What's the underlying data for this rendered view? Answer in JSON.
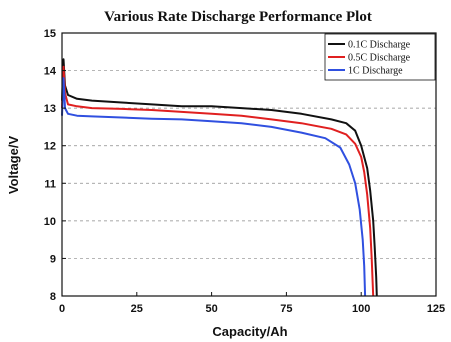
{
  "chart_data": {
    "type": "line",
    "title": "Various Rate Discharge Performance Plot",
    "xlabel": "Capacity/Ah",
    "ylabel": "Voltage/V",
    "xlim": [
      0,
      125
    ],
    "ylim": [
      8,
      15
    ],
    "xticks": [
      0,
      25,
      50,
      75,
      100,
      125
    ],
    "yticks": [
      8,
      9,
      10,
      11,
      12,
      13,
      14,
      15
    ],
    "grid": "horizontal dashed",
    "legend_position": "top-right",
    "series": [
      {
        "name": "0.1C  Discharge",
        "color": "#111111",
        "x": [
          0,
          0.5,
          1,
          2,
          5,
          10,
          20,
          30,
          40,
          50,
          60,
          70,
          80,
          90,
          95,
          98,
          100,
          102,
          103,
          104,
          104.5,
          105,
          105.2
        ],
        "y": [
          13.2,
          14.3,
          13.6,
          13.35,
          13.25,
          13.2,
          13.15,
          13.1,
          13.05,
          13.05,
          13.0,
          12.95,
          12.85,
          12.7,
          12.6,
          12.4,
          12.0,
          11.4,
          10.8,
          10.0,
          9.3,
          8.5,
          8.0
        ]
      },
      {
        "name": "0.5C  Discharge",
        "color": "#e02020",
        "x": [
          0,
          0.5,
          1,
          2,
          5,
          10,
          20,
          30,
          40,
          50,
          60,
          70,
          80,
          90,
          95,
          98,
          100,
          101,
          102,
          103,
          103.5,
          104
        ],
        "y": [
          13.0,
          14.1,
          13.4,
          13.1,
          13.05,
          13.0,
          12.98,
          12.95,
          12.9,
          12.85,
          12.8,
          12.7,
          12.6,
          12.45,
          12.3,
          12.05,
          11.7,
          11.3,
          10.7,
          9.8,
          9.0,
          8.0
        ]
      },
      {
        "name": "1C    Discharge",
        "color": "#3050e0",
        "x": [
          0,
          0.5,
          1,
          2,
          5,
          10,
          20,
          30,
          40,
          50,
          60,
          70,
          80,
          88,
          93,
          96,
          98,
          99.5,
          100.5,
          101,
          101.3
        ],
        "y": [
          12.8,
          13.8,
          13.0,
          12.85,
          12.8,
          12.78,
          12.75,
          12.72,
          12.7,
          12.65,
          12.6,
          12.5,
          12.35,
          12.2,
          11.95,
          11.5,
          11.0,
          10.3,
          9.5,
          8.8,
          8.0
        ]
      }
    ]
  }
}
